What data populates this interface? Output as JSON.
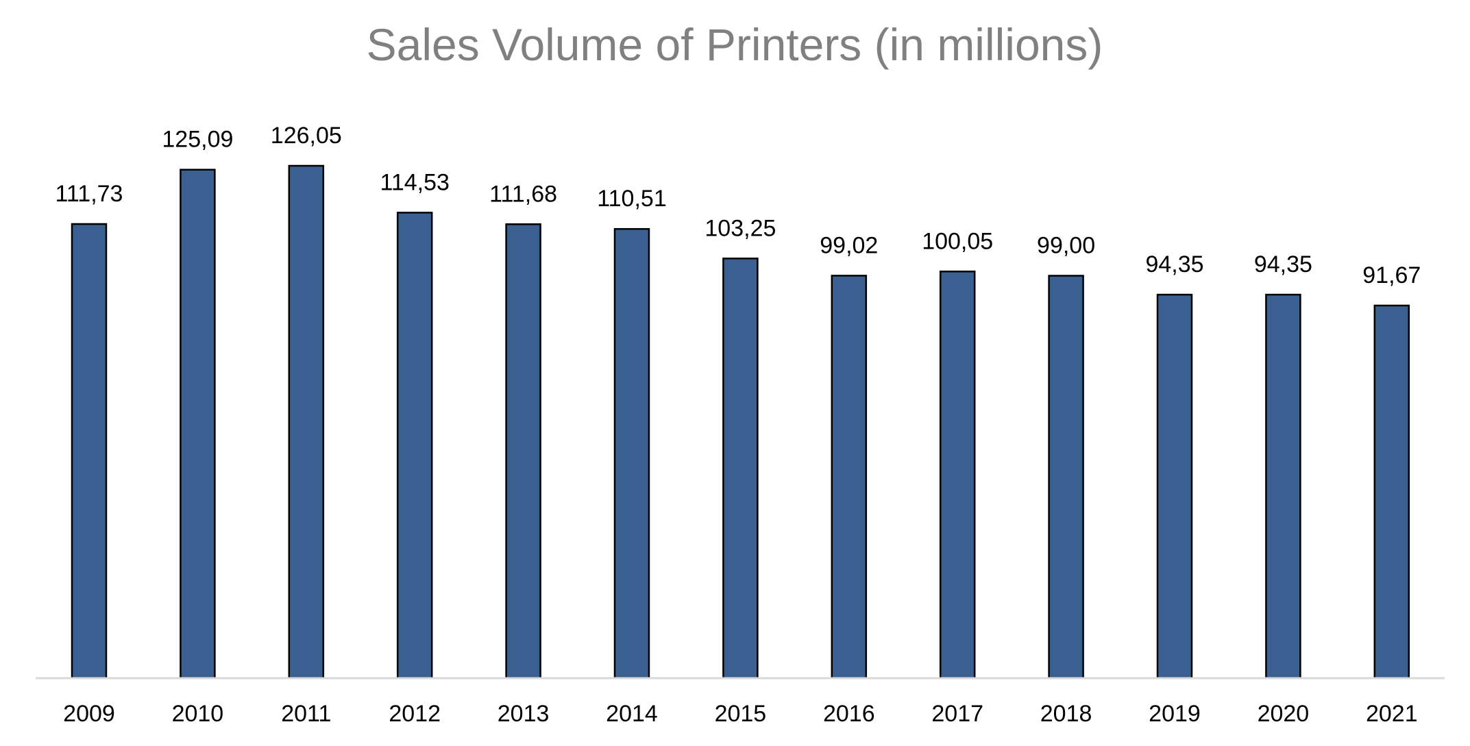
{
  "chart_data": {
    "type": "bar",
    "title": "Sales Volume of Printers (in millions)",
    "xlabel": "",
    "ylabel": "",
    "categories": [
      "2009",
      "2010",
      "2011",
      "2012",
      "2013",
      "2014",
      "2015",
      "2016",
      "2017",
      "2018",
      "2019",
      "2020",
      "2021"
    ],
    "values": [
      111.73,
      125.09,
      126.05,
      114.53,
      111.68,
      110.51,
      103.25,
      99.02,
      100.05,
      99.0,
      94.35,
      94.35,
      91.67
    ],
    "data_labels": [
      "111,73",
      "125,09",
      "126,05",
      "114,53",
      "111,68",
      "110,51",
      "103,25",
      "99,02",
      "100,05",
      "99,00",
      "94,35",
      "94,35",
      "91,67"
    ],
    "ylim": [
      0,
      126.05
    ],
    "grid": false,
    "legend": "none",
    "colors": {
      "bar_fill": "#3a5f91",
      "bar_border": "#000000",
      "title": "#808080",
      "axis_line": "#d9d9d9"
    }
  }
}
